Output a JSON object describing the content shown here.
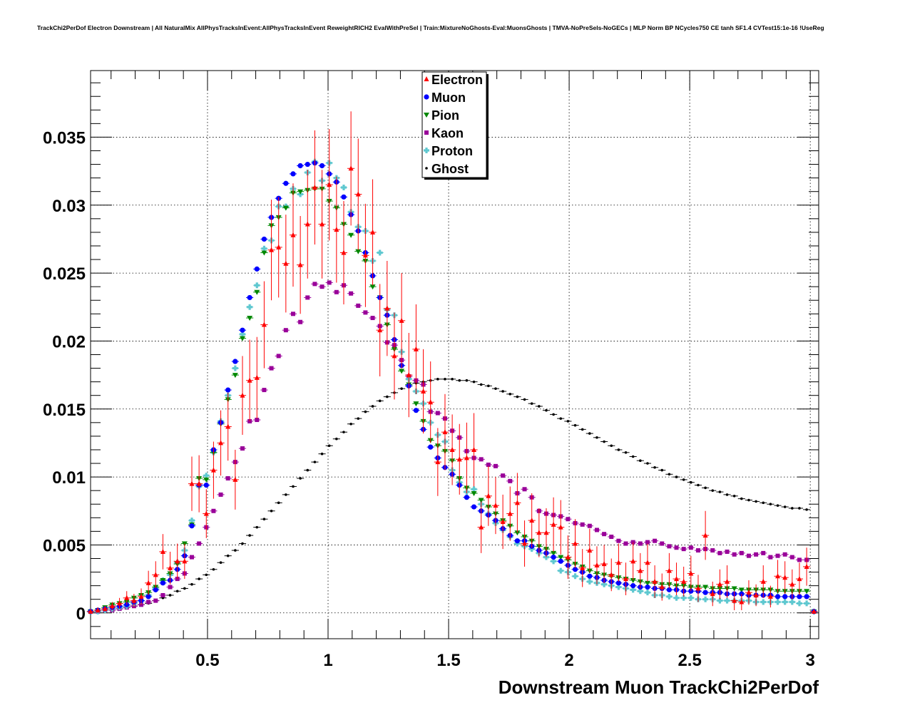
{
  "chart_data": {
    "type": "scatter",
    "title": "TrackChi2PerDof Electron Downstream | All NaturalMix AllPhysTracksInEvent:AllPhysTracksInEvent ReweightRICH2 EvalWithPreSel | Train:MixtureNoGhosts-Eval:MuonsGhosts | TMVA-NoPreSels-NoGECs | MLP Norm BP NCycles750 CE tanh SF1.4 CVTest15:1e-16 !UseReg",
    "xlabel": "Downstream Muon TrackChi2PerDof",
    "ylabel": "",
    "xlim": [
      0.015,
      3.035
    ],
    "ylim": [
      -0.0019,
      0.0399
    ],
    "grid": true,
    "legend_position": "top-center",
    "x_ticks": [
      0.5,
      1,
      1.5,
      2,
      2.5,
      3
    ],
    "x_tick_labels": [
      "0.5",
      "1",
      "1.5",
      "2",
      "2.5",
      "3"
    ],
    "y_ticks": [
      0,
      0.005,
      0.01,
      0.015,
      0.02,
      0.025,
      0.03,
      0.035
    ],
    "y_tick_labels": [
      "0",
      "0.005",
      "0.01",
      "0.015",
      "0.02",
      "0.025",
      "0.03",
      "0.035"
    ],
    "x": [
      0.015,
      0.045,
      0.075,
      0.105,
      0.135,
      0.165,
      0.195,
      0.225,
      0.255,
      0.285,
      0.315,
      0.345,
      0.375,
      0.405,
      0.435,
      0.465,
      0.495,
      0.525,
      0.555,
      0.585,
      0.615,
      0.645,
      0.675,
      0.705,
      0.735,
      0.765,
      0.795,
      0.825,
      0.855,
      0.885,
      0.915,
      0.945,
      0.975,
      1.005,
      1.035,
      1.065,
      1.095,
      1.125,
      1.155,
      1.185,
      1.215,
      1.245,
      1.275,
      1.305,
      1.335,
      1.365,
      1.395,
      1.425,
      1.455,
      1.485,
      1.515,
      1.545,
      1.575,
      1.605,
      1.635,
      1.665,
      1.695,
      1.725,
      1.755,
      1.785,
      1.815,
      1.845,
      1.875,
      1.905,
      1.935,
      1.965,
      1.995,
      2.025,
      2.055,
      2.085,
      2.115,
      2.145,
      2.175,
      2.205,
      2.235,
      2.265,
      2.295,
      2.325,
      2.355,
      2.385,
      2.415,
      2.445,
      2.475,
      2.505,
      2.535,
      2.565,
      2.595,
      2.625,
      2.655,
      2.685,
      2.715,
      2.745,
      2.775,
      2.805,
      2.835,
      2.865,
      2.895,
      2.925,
      2.955,
      2.985,
      3.015
    ],
    "series": [
      {
        "name": "Electron",
        "color": "#ff0000",
        "marker": "triangle-up",
        "values": [
          0.0001,
          0.0002,
          0.0003,
          0.0005,
          0.0007,
          0.0011,
          0.0009,
          0.0012,
          0.0022,
          0.0028,
          0.0045,
          0.0033,
          0.0038,
          0.0038,
          0.0095,
          0.0095,
          0.0073,
          0.0105,
          0.0125,
          0.0137,
          0.0098,
          0.016,
          0.0171,
          0.0173,
          0.0212,
          0.0267,
          0.0269,
          0.0257,
          0.0278,
          0.0256,
          0.0286,
          0.0313,
          0.0286,
          0.0315,
          0.0282,
          0.0265,
          0.0327,
          0.0308,
          0.0263,
          0.028,
          0.0208,
          0.0224,
          0.0189,
          0.0215,
          0.0175,
          0.0194,
          0.0163,
          0.0155,
          0.0111,
          0.0133,
          0.012,
          0.0113,
          0.0114,
          0.012,
          0.0063,
          0.0086,
          0.0079,
          0.0067,
          0.0073,
          0.0081,
          0.0051,
          0.0068,
          0.0059,
          0.0059,
          0.0065,
          0.0063,
          0.0041,
          0.0051,
          0.0033,
          0.0046,
          0.0035,
          0.0036,
          0.0028,
          0.0037,
          0.0025,
          0.0038,
          0.0031,
          0.0037,
          0.0023,
          0.0019,
          0.0031,
          0.0025,
          0.0023,
          0.0029,
          0.0018,
          0.0057,
          0.0014,
          0.0021,
          0.0023,
          0.0009,
          0.0008,
          0.0015,
          0.0013,
          0.0023,
          0.0012,
          0.0027,
          0.0026,
          0.0021,
          0.0025,
          0.0034,
          0.0001
        ]
      },
      {
        "name": "Muon",
        "color": "#0000ff",
        "marker": "circle",
        "values": [
          0.0001,
          0.0002,
          0.0003,
          0.0004,
          0.0005,
          0.0006,
          0.0008,
          0.0009,
          0.0012,
          0.0017,
          0.0022,
          0.0024,
          0.0032,
          0.0042,
          0.0064,
          0.0094,
          0.0094,
          0.012,
          0.014,
          0.0164,
          0.0185,
          0.0208,
          0.0232,
          0.0253,
          0.0275,
          0.0291,
          0.0305,
          0.0316,
          0.0323,
          0.0329,
          0.033,
          0.0331,
          0.0329,
          0.0323,
          0.0317,
          0.0306,
          0.0293,
          0.0281,
          0.0265,
          0.0248,
          0.0232,
          0.0219,
          0.0201,
          0.0182,
          0.0167,
          0.0149,
          0.0135,
          0.0122,
          0.0114,
          0.0107,
          0.0102,
          0.0094,
          0.0085,
          0.0078,
          0.0075,
          0.0072,
          0.0068,
          0.0062,
          0.0057,
          0.0053,
          0.0053,
          0.0049,
          0.0046,
          0.0044,
          0.0041,
          0.0038,
          0.0035,
          0.0032,
          0.003,
          0.0027,
          0.0026,
          0.0024,
          0.0023,
          0.0022,
          0.0021,
          0.002,
          0.0019,
          0.0019,
          0.0018,
          0.0018,
          0.0017,
          0.0017,
          0.0016,
          0.0016,
          0.0016,
          0.0015,
          0.0015,
          0.0015,
          0.0014,
          0.0014,
          0.0014,
          0.0013,
          0.0013,
          0.0013,
          0.0013,
          0.0012,
          0.0012,
          0.0012,
          0.0012,
          0.0012,
          0.0001
        ]
      },
      {
        "name": "Pion",
        "color": "#008800",
        "marker": "triangle-down",
        "values": [
          0.0001,
          0.0002,
          0.0004,
          0.0006,
          0.0007,
          0.0008,
          0.0011,
          0.0013,
          0.0015,
          0.0019,
          0.0024,
          0.0029,
          0.0036,
          0.0051,
          0.0065,
          0.0099,
          0.0098,
          0.0118,
          0.0139,
          0.0157,
          0.0175,
          0.0202,
          0.0217,
          0.0236,
          0.0265,
          0.0285,
          0.0291,
          0.0298,
          0.0309,
          0.031,
          0.0311,
          0.0312,
          0.0312,
          0.0303,
          0.0298,
          0.0286,
          0.0278,
          0.0266,
          0.0259,
          0.024,
          0.0232,
          0.0212,
          0.0194,
          0.0178,
          0.0168,
          0.0154,
          0.0141,
          0.0127,
          0.0123,
          0.0119,
          0.0112,
          0.0099,
          0.0092,
          0.0088,
          0.0083,
          0.0078,
          0.0073,
          0.0068,
          0.0064,
          0.0059,
          0.0056,
          0.0053,
          0.0049,
          0.0047,
          0.0044,
          0.0041,
          0.0039,
          0.0036,
          0.0034,
          0.0031,
          0.0029,
          0.0028,
          0.0027,
          0.0026,
          0.0025,
          0.0024,
          0.0023,
          0.0022,
          0.0022,
          0.0021,
          0.0021,
          0.002,
          0.002,
          0.0019,
          0.0019,
          0.0019,
          0.0018,
          0.0018,
          0.0018,
          0.0018,
          0.0017,
          0.0017,
          0.0017,
          0.0017,
          0.0017,
          0.0016,
          0.0016,
          0.0016,
          0.0016,
          0.0016,
          0.0001
        ]
      },
      {
        "name": "Kaon",
        "color": "#990099",
        "marker": "square",
        "values": [
          0.0001,
          0.0001,
          0.0002,
          0.0002,
          0.0003,
          0.0004,
          0.0005,
          0.0006,
          0.0008,
          0.0009,
          0.0013,
          0.0019,
          0.0025,
          0.0029,
          0.0041,
          0.0051,
          0.0063,
          0.0075,
          0.0087,
          0.0099,
          0.0111,
          0.0121,
          0.0141,
          0.0142,
          0.0164,
          0.018,
          0.0189,
          0.0208,
          0.022,
          0.0214,
          0.0232,
          0.0242,
          0.024,
          0.0243,
          0.0236,
          0.0241,
          0.0235,
          0.0226,
          0.0221,
          0.0217,
          0.0211,
          0.0199,
          0.0197,
          0.0186,
          0.0174,
          0.0171,
          0.0168,
          0.0148,
          0.0147,
          0.0143,
          0.0134,
          0.0129,
          0.0119,
          0.0114,
          0.0113,
          0.0109,
          0.0108,
          0.0101,
          0.0097,
          0.0088,
          0.0091,
          0.0085,
          0.0075,
          0.0073,
          0.0072,
          0.0071,
          0.0069,
          0.0066,
          0.0065,
          0.0064,
          0.0061,
          0.0058,
          0.0056,
          0.0053,
          0.0051,
          0.0052,
          0.0051,
          0.0052,
          0.0053,
          0.0051,
          0.0049,
          0.0048,
          0.0047,
          0.0048,
          0.0046,
          0.0047,
          0.0046,
          0.0044,
          0.0045,
          0.0043,
          0.0044,
          0.0042,
          0.0043,
          0.0044,
          0.0041,
          0.0042,
          0.0043,
          0.0041,
          0.0039,
          0.0039,
          0.0001
        ]
      },
      {
        "name": "Proton",
        "color": "#5fc8d0",
        "marker": "cross",
        "values": [
          0.0001,
          0.0001,
          0.0002,
          0.0003,
          0.0004,
          0.0005,
          0.0007,
          0.0009,
          0.0013,
          0.0018,
          0.0024,
          0.0028,
          0.0037,
          0.0046,
          0.0068,
          0.0093,
          0.0101,
          0.0118,
          0.0141,
          0.016,
          0.018,
          0.0205,
          0.0225,
          0.0241,
          0.0268,
          0.0274,
          0.0299,
          0.0299,
          0.0312,
          0.0308,
          0.0324,
          0.0332,
          0.0318,
          0.0331,
          0.032,
          0.0313,
          0.0295,
          0.0284,
          0.0281,
          0.0259,
          0.0265,
          0.0223,
          0.0219,
          0.0192,
          0.0172,
          0.0163,
          0.0154,
          0.014,
          0.0131,
          0.0126,
          0.0105,
          0.0096,
          0.0089,
          0.0091,
          0.008,
          0.0073,
          0.0066,
          0.0061,
          0.0056,
          0.0051,
          0.0049,
          0.0047,
          0.0044,
          0.0041,
          0.0038,
          0.0031,
          0.003,
          0.0027,
          0.0025,
          0.0023,
          0.0022,
          0.0021,
          0.002,
          0.0019,
          0.0018,
          0.0017,
          0.0016,
          0.0015,
          0.0013,
          0.0013,
          0.0012,
          0.0011,
          0.0011,
          0.0011,
          0.001,
          0.001,
          0.001,
          0.0009,
          0.0009,
          0.0009,
          0.0009,
          0.0009,
          0.0008,
          0.0008,
          0.0008,
          0.0008,
          0.0008,
          0.0008,
          0.0007,
          0.0007,
          0.0001
        ]
      },
      {
        "name": "Ghost",
        "color": "#000000",
        "marker": "small-dot",
        "values": [
          0.0001,
          0.0001,
          0.0002,
          0.0002,
          0.0003,
          0.0004,
          0.0005,
          0.0006,
          0.0007,
          0.0009,
          0.0011,
          0.0013,
          0.0016,
          0.0018,
          0.0021,
          0.0025,
          0.0028,
          0.0032,
          0.0037,
          0.0042,
          0.0046,
          0.0051,
          0.0057,
          0.0063,
          0.0069,
          0.0075,
          0.0081,
          0.0087,
          0.0093,
          0.0099,
          0.0105,
          0.0111,
          0.0117,
          0.0123,
          0.0128,
          0.0133,
          0.0139,
          0.0143,
          0.0148,
          0.0152,
          0.0156,
          0.0159,
          0.0162,
          0.0165,
          0.0167,
          0.0169,
          0.017,
          0.0171,
          0.0172,
          0.0172,
          0.0172,
          0.0171,
          0.0171,
          0.017,
          0.0168,
          0.0167,
          0.0165,
          0.0163,
          0.0161,
          0.0159,
          0.0157,
          0.0154,
          0.0152,
          0.0149,
          0.0146,
          0.0143,
          0.0141,
          0.0138,
          0.0135,
          0.0132,
          0.0129,
          0.0126,
          0.0123,
          0.012,
          0.0118,
          0.0115,
          0.0112,
          0.011,
          0.0107,
          0.0105,
          0.0102,
          0.01,
          0.0098,
          0.0096,
          0.0094,
          0.0092,
          0.009,
          0.0089,
          0.0087,
          0.0086,
          0.0084,
          0.0083,
          0.0082,
          0.0081,
          0.008,
          0.0079,
          0.0078,
          0.0077,
          0.0077,
          0.0076,
          0.0001
        ]
      }
    ],
    "electron_errors": [
      0,
      0.0002,
      0.0002,
      0.0003,
      0.0004,
      0.0005,
      0.0005,
      0.0006,
      0.0009,
      0.001,
      0.0013,
      0.0012,
      0.0013,
      0.0013,
      0.002,
      0.0021,
      0.0018,
      0.0021,
      0.0024,
      0.0025,
      0.0022,
      0.0029,
      0.003,
      0.003,
      0.0032,
      0.0037,
      0.0037,
      0.0036,
      0.0038,
      0.0036,
      0.004,
      0.0042,
      0.004,
      0.0041,
      0.0039,
      0.0038,
      0.0042,
      0.0041,
      0.0038,
      0.0039,
      0.0034,
      0.0035,
      0.0032,
      0.0035,
      0.0031,
      0.0033,
      0.0031,
      0.003,
      0.0025,
      0.0028,
      0.0026,
      0.0026,
      0.0026,
      0.0027,
      0.0019,
      0.0022,
      0.0021,
      0.002,
      0.002,
      0.0022,
      0.0017,
      0.002,
      0.0018,
      0.0018,
      0.002,
      0.002,
      0.0016,
      0.0018,
      0.0014,
      0.0016,
      0.0014,
      0.0014,
      0.0012,
      0.0014,
      0.0012,
      0.0014,
      0.0013,
      0.0014,
      0.0012,
      0.001,
      0.0013,
      0.0012,
      0.0011,
      0.0013,
      0.001,
      0.0018,
      0.0009,
      0.0011,
      0.0012,
      0.0007,
      0.0006,
      0.0009,
      0.0008,
      0.0012,
      0.0008,
      0.0012,
      0.0012,
      0.0011,
      0.0012,
      0.0014,
      0
    ]
  }
}
